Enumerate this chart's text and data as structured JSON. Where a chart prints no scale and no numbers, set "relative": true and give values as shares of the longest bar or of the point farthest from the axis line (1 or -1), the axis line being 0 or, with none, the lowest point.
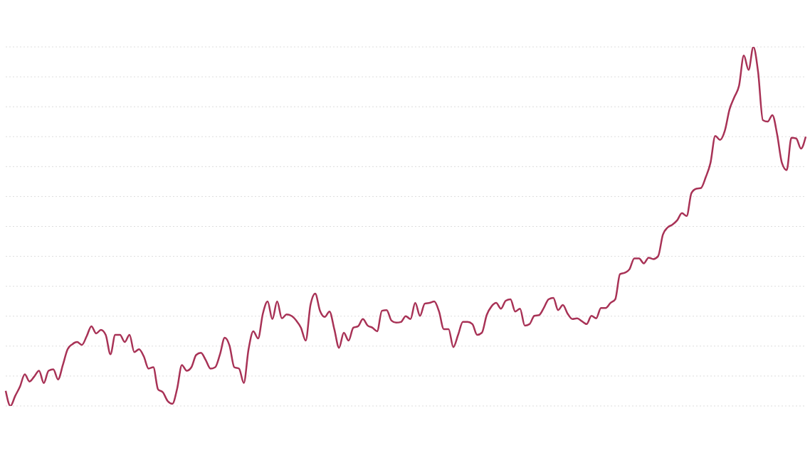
{
  "chart_data": {
    "type": "line",
    "relative": true,
    "grid": "y",
    "legend": false,
    "marker": "none",
    "line_style": "solid",
    "categories": [
      null,
      null,
      null,
      null,
      null,
      null,
      null,
      null,
      null,
      null,
      null,
      null,
      null,
      null,
      null,
      null,
      null,
      null,
      null,
      null,
      null,
      null,
      null,
      null,
      null,
      null,
      null,
      null,
      null,
      null,
      null,
      null,
      null,
      null,
      null,
      null,
      null,
      null,
      null,
      null,
      null,
      null,
      null,
      null,
      null,
      null,
      null,
      null,
      null,
      null,
      null,
      null,
      null,
      null,
      null,
      null,
      null,
      null,
      null,
      null,
      null,
      null,
      null,
      null,
      null,
      null,
      null,
      null,
      null,
      null,
      null,
      null,
      null,
      null,
      null,
      null,
      null,
      null,
      null,
      null,
      null,
      null,
      null,
      null,
      null,
      null,
      null,
      null,
      null,
      null,
      null,
      null,
      null,
      null,
      null,
      null,
      null,
      null,
      null,
      null,
      null,
      null,
      null,
      null,
      null,
      null,
      null,
      null,
      null,
      null,
      null,
      null,
      null,
      null,
      null,
      null,
      null,
      null,
      null,
      null,
      null,
      null,
      null,
      null,
      null,
      null,
      null,
      null,
      null,
      null,
      null,
      null,
      null,
      null,
      null,
      null,
      null,
      null,
      null,
      null,
      null,
      null,
      null,
      null,
      null,
      null,
      null,
      null,
      null,
      null,
      null,
      null,
      null,
      null,
      null,
      null,
      null,
      null,
      null,
      null,
      null,
      null,
      null,
      null,
      null,
      null,
      null,
      null,
      null
    ],
    "series": [
      {
        "color": "#a83256",
        "values": [
          0.042,
          0,
          0.028,
          0.054,
          0.088,
          0.068,
          0.082,
          0.098,
          0.064,
          0.098,
          0.102,
          0.074,
          0.114,
          0.158,
          0.172,
          0.178,
          0.17,
          0.194,
          0.222,
          0.202,
          0.212,
          0.198,
          0.144,
          0.198,
          0.198,
          0.178,
          0.198,
          0.15,
          0.158,
          0.138,
          0.104,
          0.108,
          0.046,
          0.038,
          0.014,
          0.006,
          0.048,
          0.114,
          0.098,
          0.108,
          0.142,
          0.148,
          0.128,
          0.104,
          0.108,
          0.144,
          0.19,
          0.168,
          0.108,
          0.104,
          0.064,
          0.158,
          0.208,
          0.188,
          0.257,
          0.291,
          0.242,
          0.291,
          0.244,
          0.255,
          0.251,
          0.238,
          0.218,
          0.182,
          0.281,
          0.313,
          0.265,
          0.248,
          0.263,
          0.214,
          0.162,
          0.204,
          0.182,
          0.218,
          0.222,
          0.242,
          0.224,
          0.218,
          0.208,
          0.265,
          0.267,
          0.238,
          0.232,
          0.234,
          0.25,
          0.242,
          0.287,
          0.251,
          0.285,
          0.287,
          0.291,
          0.263,
          0.214,
          0.214,
          0.164,
          0.198,
          0.234,
          0.234,
          0.228,
          0.198,
          0.204,
          0.253,
          0.277,
          0.287,
          0.271,
          0.293,
          0.297,
          0.263,
          0.271,
          0.224,
          0.228,
          0.251,
          0.253,
          0.273,
          0.297,
          0.301,
          0.267,
          0.281,
          0.257,
          0.242,
          0.244,
          0.236,
          0.228,
          0.251,
          0.244,
          0.273,
          0.273,
          0.287,
          0.297,
          0.367,
          0.371,
          0.381,
          0.411,
          0.411,
          0.397,
          0.413,
          0.409,
          0.417,
          0.477,
          0.497,
          0.505,
          0.517,
          0.537,
          0.529,
          0.593,
          0.605,
          0.607,
          0.637,
          0.677,
          0.752,
          0.741,
          0.766,
          0.826,
          0.86,
          0.892,
          0.976,
          0.936,
          1,
          0.93,
          0.796,
          0.792,
          0.81,
          0.756,
          0.677,
          0.657,
          0.747,
          0.745,
          0.717,
          0.75
        ]
      }
    ]
  }
}
